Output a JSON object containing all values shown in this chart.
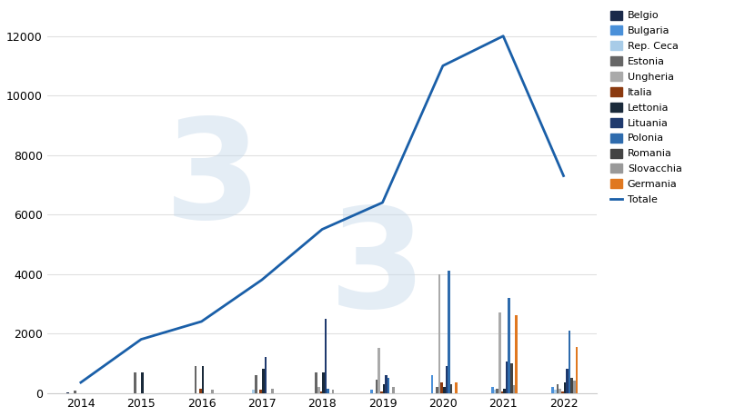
{
  "years": [
    2014,
    2015,
    2016,
    2017,
    2018,
    2019,
    2020,
    2021,
    2022
  ],
  "totale": [
    350,
    1800,
    2400,
    3800,
    5500,
    6400,
    11000,
    12000,
    7300
  ],
  "countries": [
    "Belgio",
    "Bulgaria",
    "Rep. Ceca",
    "Estonia",
    "Ungheria",
    "Italia",
    "Lettonia",
    "Lituania",
    "Polonia",
    "Romania",
    "Slovacchia",
    "Germania"
  ],
  "colors": [
    "#1a2a4a",
    "#4a90d9",
    "#a8cce8",
    "#666666",
    "#aaaaaa",
    "#8B3A0F",
    "#1a2a3a",
    "#1f3a6e",
    "#2e6bad",
    "#444444",
    "#999999",
    "#e07820"
  ],
  "data": {
    "Belgio": [
      10,
      0,
      0,
      0,
      0,
      0,
      0,
      0,
      0
    ],
    "Bulgaria": [
      0,
      0,
      0,
      0,
      0,
      100,
      600,
      200,
      200
    ],
    "Rep. Ceca": [
      0,
      0,
      0,
      100,
      0,
      0,
      0,
      100,
      100
    ],
    "Estonia": [
      80,
      700,
      900,
      600,
      700,
      450,
      200,
      150,
      300
    ],
    "Ungheria": [
      0,
      0,
      0,
      0,
      200,
      1500,
      4000,
      2700,
      150
    ],
    "Italia": [
      0,
      0,
      150,
      100,
      50,
      50,
      350,
      50,
      50
    ],
    "Lettonia": [
      0,
      700,
      900,
      800,
      700,
      300,
      200,
      150,
      350
    ],
    "Lituania": [
      0,
      0,
      0,
      1200,
      2500,
      600,
      900,
      1050,
      800
    ],
    "Polonia": [
      0,
      0,
      0,
      0,
      150,
      500,
      4100,
      3200,
      2100
    ],
    "Romania": [
      0,
      0,
      0,
      0,
      0,
      0,
      300,
      1000,
      500
    ],
    "Slovacchia": [
      0,
      0,
      100,
      150,
      100,
      200,
      0,
      250,
      400
    ],
    "Germania": [
      0,
      0,
      0,
      0,
      0,
      0,
      350,
      2600,
      1550
    ]
  },
  "background_color": "#ffffff",
  "line_color": "#1a5fa8",
  "ylim": [
    0,
    13000
  ],
  "yticks": [
    0,
    2000,
    4000,
    6000,
    8000,
    10000,
    12000
  ],
  "figsize": [
    8.2,
    4.58
  ],
  "dpi": 100
}
